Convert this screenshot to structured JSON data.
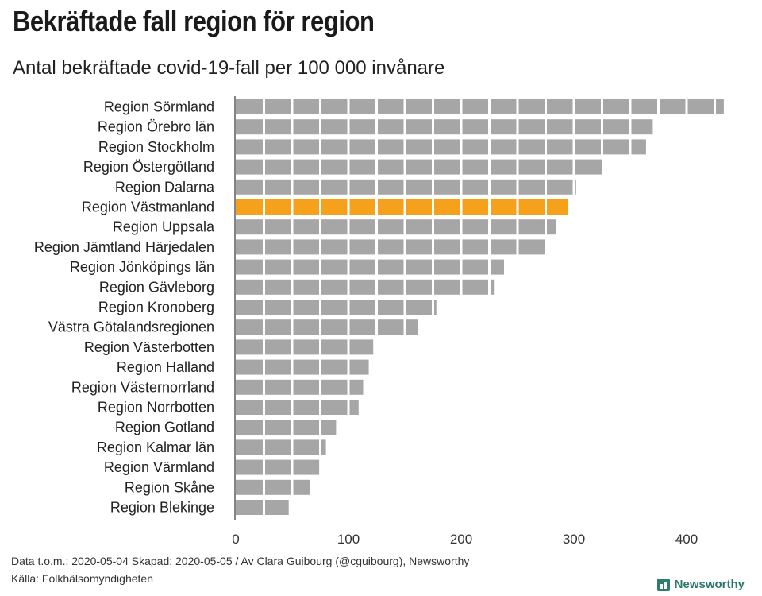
{
  "header": {
    "title": "Bekräftade fall region för region",
    "subtitle": "Antal bekräftade covid-19-fall per 100 000 invånare"
  },
  "footer": {
    "line1": "Data t.o.m.: 2020-05-04 Skapad: 2020-05-05 / Av Clara Guibourg (@cguibourg), Newsworthy",
    "line2": "Källa: Folkhälsomyndigheten",
    "brand": "Newsworthy"
  },
  "colors": {
    "bar": "#a6a6a6",
    "highlight": "#f5a11c",
    "brand": "#2f7d6e"
  },
  "chart_data": {
    "type": "bar",
    "orientation": "horizontal",
    "categories": [
      "Region Sörmland",
      "Region Örebro län",
      "Region Stockholm",
      "Region Östergötland",
      "Region Dalarna",
      "Region Västmanland",
      "Region Uppsala",
      "Region Jämtland Härjedalen",
      "Region Jönköpings län",
      "Region Gävleborg",
      "Region Kronoberg",
      "Västra Götalandsregionen",
      "Region Västerbotten",
      "Region Halland",
      "Region Västernorrland",
      "Region Norrbotten",
      "Region Gotland",
      "Region Kalmar län",
      "Region Värmland",
      "Region Skåne",
      "Region Blekinge"
    ],
    "values": [
      433,
      370,
      364,
      325,
      302,
      295,
      284,
      274,
      238,
      229,
      178,
      162,
      122,
      118,
      113,
      109,
      89,
      80,
      74,
      66,
      47
    ],
    "highlight": "Region Västmanland",
    "xlim": [
      0,
      450
    ],
    "xticks": [
      0,
      100,
      200,
      300,
      400
    ],
    "segment_size": 25,
    "grid": false
  }
}
